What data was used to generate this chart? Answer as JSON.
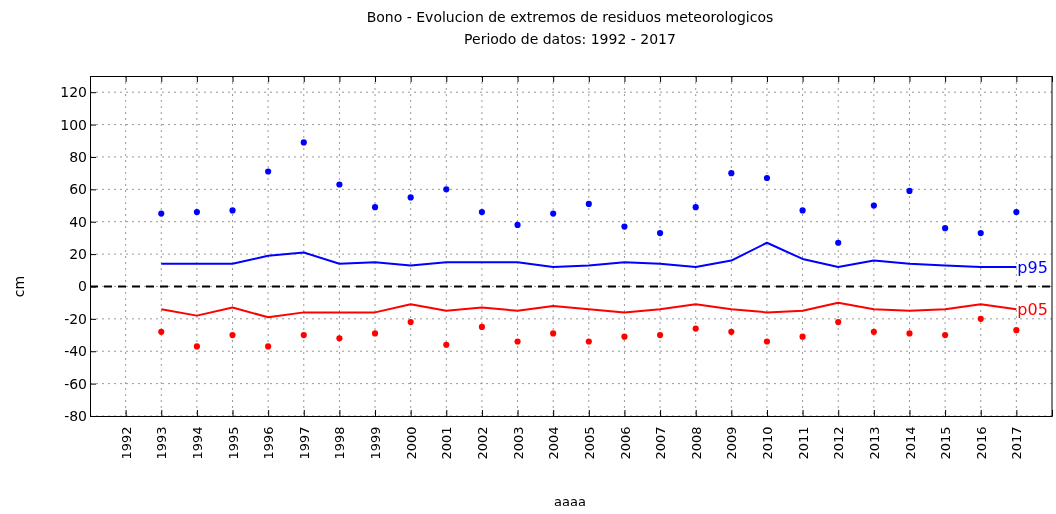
{
  "chart_data": {
    "type": "scatter",
    "title": "Bono - Evolucion de extremos de residuos meteorologicos",
    "subtitle": "Periodo de datos: 1992 - 2017",
    "xlabel": "aaaa",
    "ylabel": "cm",
    "x": [
      1993,
      1994,
      1995,
      1996,
      1997,
      1998,
      1999,
      2000,
      2001,
      2002,
      2003,
      2004,
      2005,
      2006,
      2007,
      2008,
      2009,
      2010,
      2011,
      2012,
      2013,
      2014,
      2015,
      2016,
      2017
    ],
    "xlim": [
      1991,
      2018
    ],
    "xticks": [
      1992,
      1993,
      1994,
      1995,
      1996,
      1997,
      1998,
      1999,
      2000,
      2001,
      2002,
      2003,
      2004,
      2005,
      2006,
      2007,
      2008,
      2009,
      2010,
      2011,
      2012,
      2013,
      2014,
      2015,
      2016,
      2017
    ],
    "ylim": [
      -80,
      130
    ],
    "yticks": [
      -80,
      -60,
      -40,
      -20,
      0,
      20,
      40,
      60,
      80,
      100,
      120
    ],
    "grid": true,
    "marker": "circle",
    "ref_lines": [
      {
        "axis": "y",
        "value": 0,
        "color": "#000000",
        "line_style": "dashed"
      }
    ],
    "series": [
      {
        "color": "#0000ff",
        "values": [
          45,
          46,
          47,
          71,
          89,
          63,
          49,
          55,
          60,
          46,
          38,
          45,
          51,
          37,
          33,
          49,
          70,
          67,
          47,
          27,
          50,
          59,
          36,
          33,
          46
        ]
      },
      {
        "color": "#ff0000",
        "values": [
          -28,
          -37,
          -30,
          -37,
          -30,
          -32,
          -29,
          -22,
          -36,
          -25,
          -34,
          -29,
          -34,
          -31,
          -30,
          -26,
          -28,
          -34,
          -31,
          -22,
          -28,
          -29,
          -30,
          -20,
          -27
        ]
      },
      {
        "type": "line",
        "name": "p95",
        "color": "#0000ff",
        "marker": "none",
        "values": [
          14,
          14,
          14,
          19,
          21,
          14,
          15,
          13,
          15,
          15,
          15,
          12,
          13,
          15,
          14,
          12,
          16,
          27,
          17,
          12,
          16,
          14,
          13,
          12,
          12
        ]
      },
      {
        "type": "line",
        "name": "p05",
        "color": "#ff0000",
        "marker": "none",
        "values": [
          -14,
          -18,
          -13,
          -19,
          -16,
          -16,
          -16,
          -11,
          -15,
          -13,
          -15,
          -12,
          -14,
          -16,
          -14,
          -11,
          -14,
          -16,
          -15,
          -10,
          -14,
          -15,
          -14,
          -11,
          -14
        ]
      }
    ]
  }
}
